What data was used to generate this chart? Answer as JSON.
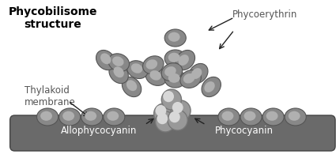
{
  "bg_color": "#ffffff",
  "membrane_color": "#6a6a6a",
  "disk_color_light": "#b0b0b0",
  "disk_color_dark": "#888888",
  "disk_edge_color": "#555555",
  "core_color_light": "#d8d8d8",
  "core_color_dark": "#999999",
  "core_edge_color": "#777777",
  "title": "Phycobilisome\nstructure",
  "label_thylakoid": "Thylakoid\nmembrane",
  "label_phycoerythrin": "Phycoerythrin",
  "label_allophycocyanin": "Allophycocyanin",
  "label_phycocyanin": "Phycocyanin",
  "title_fontsize": 10,
  "label_fontsize": 8.5,
  "text_color_gray": "#555555",
  "arrow_color": "#222222"
}
